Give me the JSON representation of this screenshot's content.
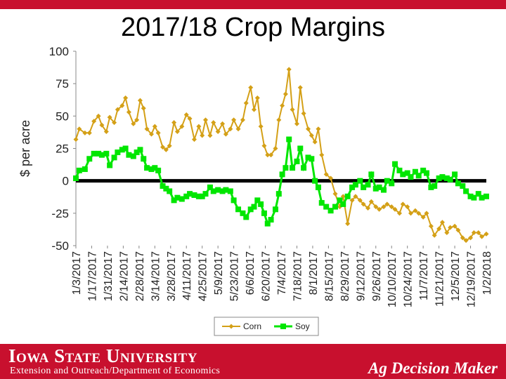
{
  "slide": {
    "title": "2017/18 Crop Margins",
    "university": "Iowa State University",
    "department": "Extension and Outreach/Department of Economics",
    "brand": "Ag Decision Maker",
    "colors": {
      "brand_red": "#c8102e",
      "corn": "#d4a017",
      "soy": "#00e600"
    }
  },
  "chart_data": {
    "type": "line",
    "title": "",
    "ylabel": "$ per acre",
    "xlabel": "",
    "ylim": [
      -50,
      100
    ],
    "yticks": [
      -50,
      -25,
      0,
      25,
      50,
      75,
      100
    ],
    "xlim": [
      "2017-01-03",
      "2018-01-02"
    ],
    "xticks": [
      "1/3/2017",
      "1/17/2017",
      "1/31/2017",
      "2/14/2017",
      "2/28/2017",
      "3/14/2017",
      "3/28/2017",
      "4/11/2017",
      "4/25/2017",
      "5/9/2017",
      "5/23/2017",
      "6/6/2017",
      "6/20/2017",
      "7/4/2017",
      "7/18/2017",
      "8/1/2017",
      "8/15/2017",
      "8/29/2017",
      "9/12/2017",
      "9/26/2017",
      "10/10/2017",
      "10/24/2017",
      "11/7/2017",
      "11/21/2017",
      "12/5/2017",
      "12/19/2017",
      "1/2/2018"
    ],
    "grid": false,
    "legend": "bottom",
    "reference_line": 0,
    "series": [
      {
        "name": "Corn",
        "color": "#d4a017",
        "marker": "diamond",
        "points": [
          [
            "2017-01-03",
            32
          ],
          [
            "2017-01-06",
            40
          ],
          [
            "2017-01-11",
            37
          ],
          [
            "2017-01-15",
            37
          ],
          [
            "2017-01-19",
            46
          ],
          [
            "2017-01-23",
            50
          ],
          [
            "2017-01-26",
            43
          ],
          [
            "2017-01-30",
            38
          ],
          [
            "2017-02-02",
            49
          ],
          [
            "2017-02-06",
            45
          ],
          [
            "2017-02-09",
            55
          ],
          [
            "2017-02-13",
            58
          ],
          [
            "2017-02-16",
            64
          ],
          [
            "2017-02-19",
            53
          ],
          [
            "2017-02-23",
            44
          ],
          [
            "2017-02-26",
            47
          ],
          [
            "2017-03-01",
            62
          ],
          [
            "2017-03-04",
            56
          ],
          [
            "2017-03-07",
            40
          ],
          [
            "2017-03-11",
            36
          ],
          [
            "2017-03-14",
            42
          ],
          [
            "2017-03-17",
            37
          ],
          [
            "2017-03-21",
            26
          ],
          [
            "2017-03-24",
            24
          ],
          [
            "2017-03-27",
            27
          ],
          [
            "2017-03-31",
            45
          ],
          [
            "2017-04-03",
            38
          ],
          [
            "2017-04-07",
            42
          ],
          [
            "2017-04-11",
            51
          ],
          [
            "2017-04-14",
            48
          ],
          [
            "2017-04-18",
            32
          ],
          [
            "2017-04-22",
            42
          ],
          [
            "2017-04-25",
            35
          ],
          [
            "2017-04-28",
            47
          ],
          [
            "2017-05-02",
            35
          ],
          [
            "2017-05-05",
            45
          ],
          [
            "2017-05-09",
            38
          ],
          [
            "2017-05-13",
            44
          ],
          [
            "2017-05-16",
            36
          ],
          [
            "2017-05-20",
            40
          ],
          [
            "2017-05-23",
            47
          ],
          [
            "2017-05-27",
            40
          ],
          [
            "2017-05-31",
            47
          ],
          [
            "2017-06-03",
            60
          ],
          [
            "2017-06-07",
            72
          ],
          [
            "2017-06-10",
            55
          ],
          [
            "2017-06-13",
            64
          ],
          [
            "2017-06-16",
            42
          ],
          [
            "2017-06-19",
            27
          ],
          [
            "2017-06-22",
            20
          ],
          [
            "2017-06-25",
            20
          ],
          [
            "2017-06-29",
            25
          ],
          [
            "2017-07-02",
            47
          ],
          [
            "2017-07-05",
            58
          ],
          [
            "2017-07-08",
            67
          ],
          [
            "2017-07-11",
            86
          ],
          [
            "2017-07-14",
            55
          ],
          [
            "2017-07-18",
            44
          ],
          [
            "2017-07-21",
            72
          ],
          [
            "2017-07-24",
            52
          ],
          [
            "2017-07-28",
            40
          ],
          [
            "2017-07-31",
            35
          ],
          [
            "2017-08-03",
            30
          ],
          [
            "2017-08-06",
            40
          ],
          [
            "2017-08-09",
            20
          ],
          [
            "2017-08-13",
            5
          ],
          [
            "2017-08-17",
            2
          ],
          [
            "2017-08-21",
            -10
          ],
          [
            "2017-08-25",
            -20
          ],
          [
            "2017-08-28",
            -12
          ],
          [
            "2017-09-01",
            -33
          ],
          [
            "2017-09-05",
            -15
          ],
          [
            "2017-09-08",
            -12
          ],
          [
            "2017-09-12",
            -15
          ],
          [
            "2017-09-15",
            -18
          ],
          [
            "2017-09-19",
            -21
          ],
          [
            "2017-09-22",
            -16
          ],
          [
            "2017-09-26",
            -20
          ],
          [
            "2017-09-29",
            -22
          ],
          [
            "2017-10-03",
            -20
          ],
          [
            "2017-10-06",
            -18
          ],
          [
            "2017-10-10",
            -20
          ],
          [
            "2017-10-13",
            -22
          ],
          [
            "2017-10-17",
            -25
          ],
          [
            "2017-10-20",
            -18
          ],
          [
            "2017-10-24",
            -20
          ],
          [
            "2017-10-27",
            -25
          ],
          [
            "2017-10-31",
            -23
          ],
          [
            "2017-11-03",
            -25
          ],
          [
            "2017-11-07",
            -28
          ],
          [
            "2017-11-10",
            -25
          ],
          [
            "2017-11-14",
            -35
          ],
          [
            "2017-11-17",
            -42
          ],
          [
            "2017-11-21",
            -37
          ],
          [
            "2017-11-24",
            -32
          ],
          [
            "2017-11-28",
            -40
          ],
          [
            "2017-12-01",
            -36
          ],
          [
            "2017-12-05",
            -35
          ],
          [
            "2017-12-08",
            -38
          ],
          [
            "2017-12-12",
            -44
          ],
          [
            "2017-12-15",
            -46
          ],
          [
            "2017-12-19",
            -44
          ],
          [
            "2017-12-22",
            -40
          ],
          [
            "2017-12-26",
            -40
          ],
          [
            "2017-12-29",
            -43
          ],
          [
            "2018-01-02",
            -41
          ]
        ]
      },
      {
        "name": "Soy",
        "color": "#00e600",
        "marker": "square",
        "points": [
          [
            "2017-01-03",
            2
          ],
          [
            "2017-01-06",
            8
          ],
          [
            "2017-01-11",
            9
          ],
          [
            "2017-01-15",
            17
          ],
          [
            "2017-01-19",
            21
          ],
          [
            "2017-01-23",
            21
          ],
          [
            "2017-01-26",
            20
          ],
          [
            "2017-01-30",
            21
          ],
          [
            "2017-02-02",
            12
          ],
          [
            "2017-02-06",
            18
          ],
          [
            "2017-02-09",
            22
          ],
          [
            "2017-02-13",
            24
          ],
          [
            "2017-02-16",
            25
          ],
          [
            "2017-02-19",
            20
          ],
          [
            "2017-02-23",
            19
          ],
          [
            "2017-02-26",
            22
          ],
          [
            "2017-03-01",
            24
          ],
          [
            "2017-03-04",
            17
          ],
          [
            "2017-03-07",
            10
          ],
          [
            "2017-03-11",
            9
          ],
          [
            "2017-03-14",
            10
          ],
          [
            "2017-03-17",
            8
          ],
          [
            "2017-03-21",
            -4
          ],
          [
            "2017-03-24",
            -6
          ],
          [
            "2017-03-27",
            -8
          ],
          [
            "2017-03-31",
            -15
          ],
          [
            "2017-04-03",
            -13
          ],
          [
            "2017-04-07",
            -14
          ],
          [
            "2017-04-11",
            -12
          ],
          [
            "2017-04-14",
            -10
          ],
          [
            "2017-04-18",
            -11
          ],
          [
            "2017-04-22",
            -12
          ],
          [
            "2017-04-25",
            -12
          ],
          [
            "2017-04-28",
            -10
          ],
          [
            "2017-05-02",
            -5
          ],
          [
            "2017-05-05",
            -8
          ],
          [
            "2017-05-09",
            -7
          ],
          [
            "2017-05-13",
            -8
          ],
          [
            "2017-05-16",
            -7
          ],
          [
            "2017-05-20",
            -8
          ],
          [
            "2017-05-23",
            -15
          ],
          [
            "2017-05-27",
            -22
          ],
          [
            "2017-05-31",
            -25
          ],
          [
            "2017-06-03",
            -28
          ],
          [
            "2017-06-07",
            -22
          ],
          [
            "2017-06-10",
            -20
          ],
          [
            "2017-06-13",
            -15
          ],
          [
            "2017-06-16",
            -18
          ],
          [
            "2017-06-19",
            -25
          ],
          [
            "2017-06-22",
            -33
          ],
          [
            "2017-06-25",
            -30
          ],
          [
            "2017-06-29",
            -22
          ],
          [
            "2017-07-02",
            -10
          ],
          [
            "2017-07-05",
            5
          ],
          [
            "2017-07-08",
            10
          ],
          [
            "2017-07-11",
            32
          ],
          [
            "2017-07-14",
            10
          ],
          [
            "2017-07-18",
            15
          ],
          [
            "2017-07-21",
            25
          ],
          [
            "2017-07-24",
            10
          ],
          [
            "2017-07-28",
            18
          ],
          [
            "2017-07-31",
            17
          ],
          [
            "2017-08-03",
            0
          ],
          [
            "2017-08-06",
            -5
          ],
          [
            "2017-08-09",
            -17
          ],
          [
            "2017-08-13",
            -20
          ],
          [
            "2017-08-17",
            -23
          ],
          [
            "2017-08-21",
            -20
          ],
          [
            "2017-08-25",
            -15
          ],
          [
            "2017-08-28",
            -18
          ],
          [
            "2017-09-01",
            -12
          ],
          [
            "2017-09-05",
            -5
          ],
          [
            "2017-09-08",
            -3
          ],
          [
            "2017-09-12",
            0
          ],
          [
            "2017-09-15",
            -5
          ],
          [
            "2017-09-19",
            -3
          ],
          [
            "2017-09-22",
            5
          ],
          [
            "2017-09-26",
            -6
          ],
          [
            "2017-09-29",
            -5
          ],
          [
            "2017-10-03",
            -7
          ],
          [
            "2017-10-06",
            0
          ],
          [
            "2017-10-10",
            -2
          ],
          [
            "2017-10-13",
            13
          ],
          [
            "2017-10-17",
            8
          ],
          [
            "2017-10-20",
            5
          ],
          [
            "2017-10-24",
            6
          ],
          [
            "2017-10-27",
            3
          ],
          [
            "2017-10-31",
            7
          ],
          [
            "2017-11-03",
            4
          ],
          [
            "2017-11-07",
            8
          ],
          [
            "2017-11-10",
            6
          ],
          [
            "2017-11-14",
            -5
          ],
          [
            "2017-11-17",
            -4
          ],
          [
            "2017-11-21",
            2
          ],
          [
            "2017-11-24",
            3
          ],
          [
            "2017-11-28",
            2
          ],
          [
            "2017-12-01",
            1
          ],
          [
            "2017-12-05",
            5
          ],
          [
            "2017-12-08",
            -2
          ],
          [
            "2017-12-12",
            -4
          ],
          [
            "2017-12-15",
            -8
          ],
          [
            "2017-12-19",
            -12
          ],
          [
            "2017-12-22",
            -13
          ],
          [
            "2017-12-26",
            -10
          ],
          [
            "2017-12-29",
            -13
          ],
          [
            "2018-01-02",
            -12
          ]
        ]
      }
    ]
  }
}
